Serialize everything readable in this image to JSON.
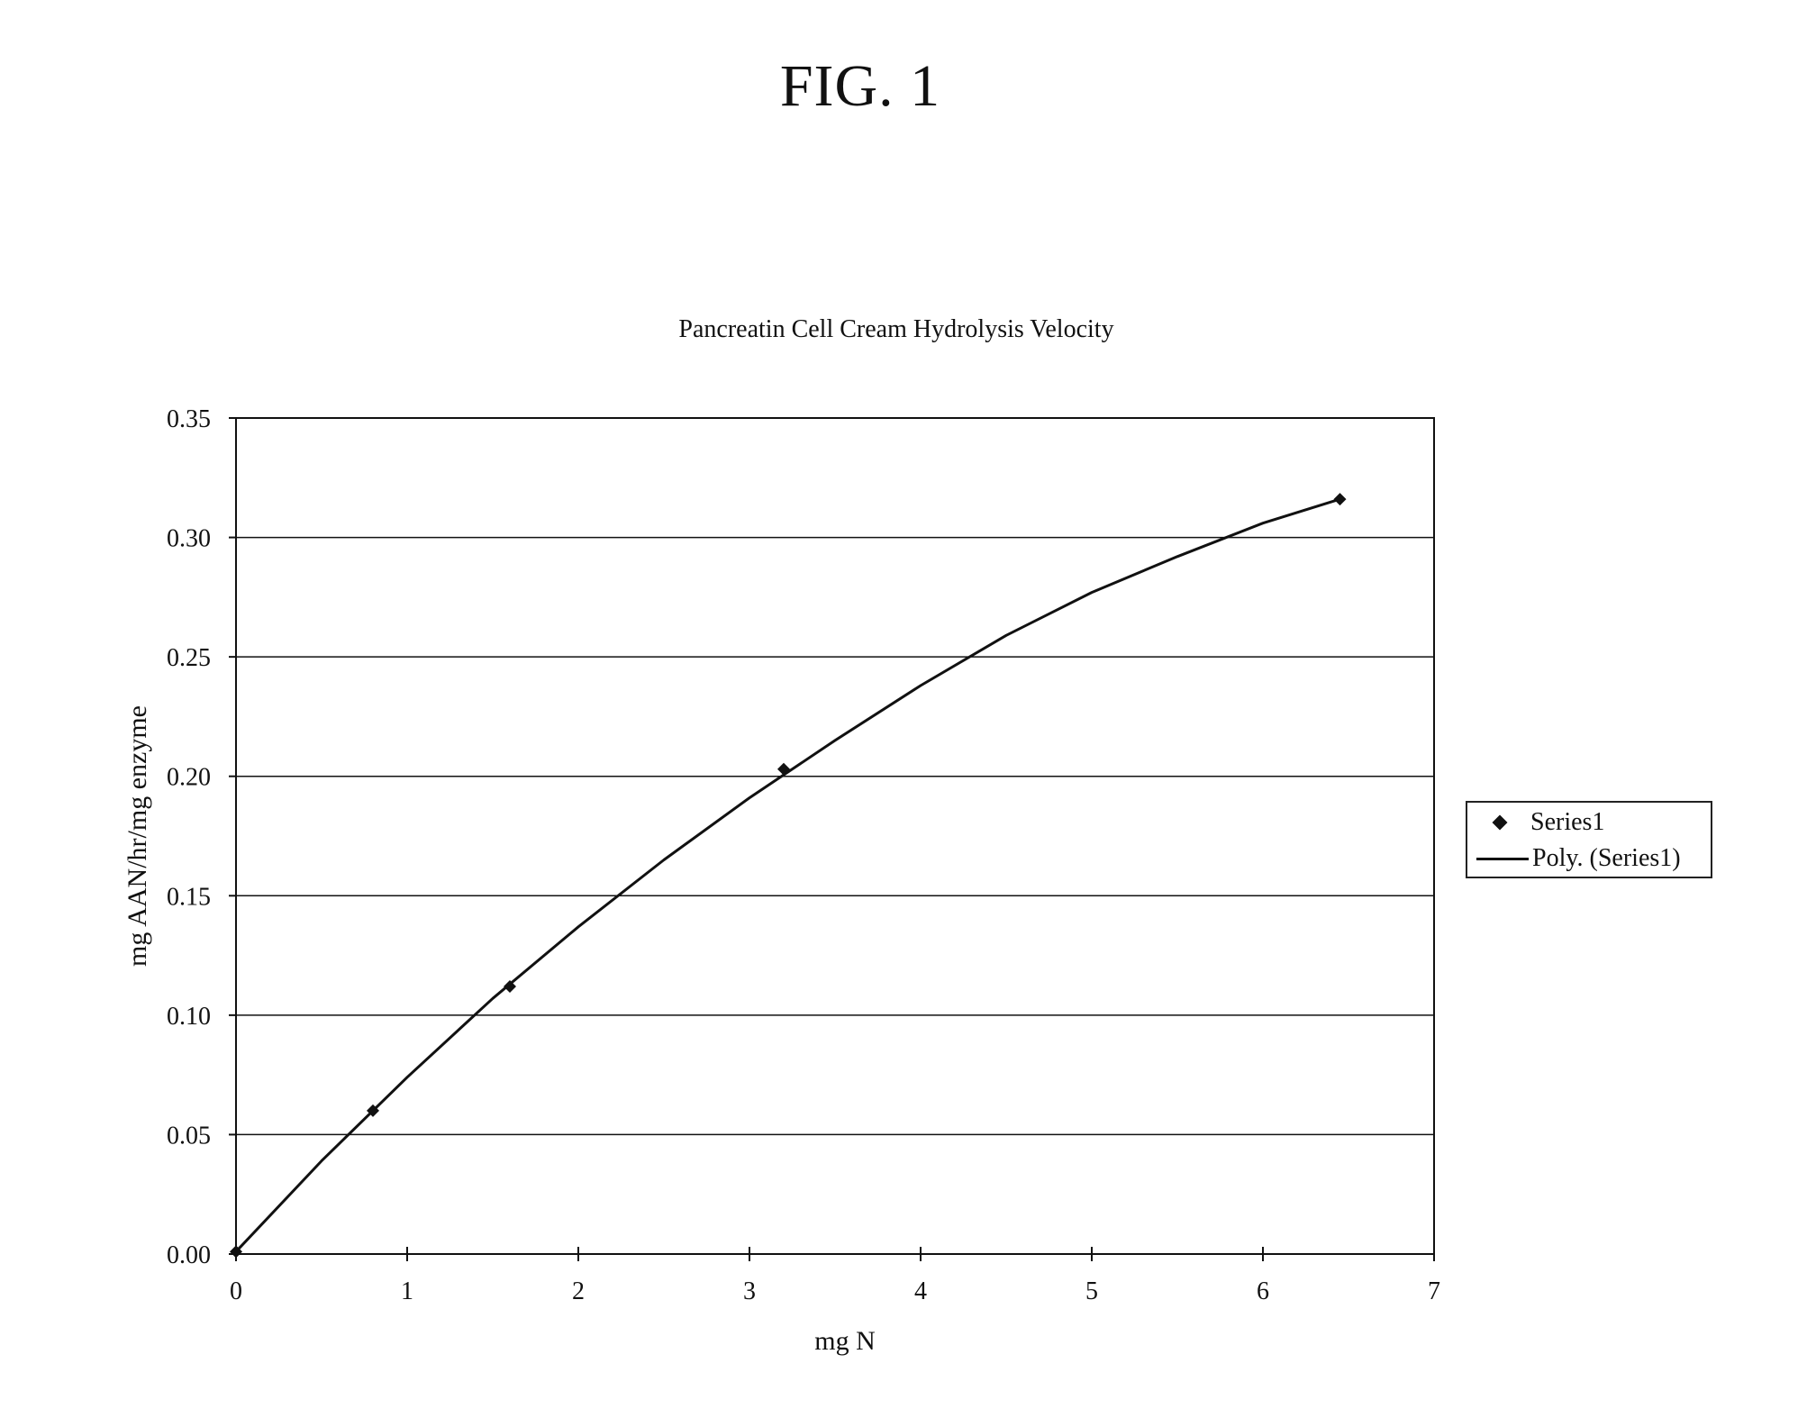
{
  "figure_label": "FIG. 1",
  "chart_data": {
    "type": "scatter",
    "title": "Pancreatin Cell Cream Hydrolysis Velocity",
    "xlabel": "mg N",
    "ylabel": "mg AAN/hr/mg enzyme",
    "xlim": [
      0,
      7
    ],
    "ylim": [
      0,
      0.35
    ],
    "x_ticks": [
      "0",
      "1",
      "2",
      "3",
      "4",
      "5",
      "6",
      "7"
    ],
    "y_ticks": [
      "0.00",
      "0.05",
      "0.10",
      "0.15",
      "0.20",
      "0.25",
      "0.30",
      "0.35"
    ],
    "grid": "horizontal",
    "legend_position": "right",
    "series": [
      {
        "name": "Series1",
        "marker": "diamond",
        "x": [
          0,
          0.8,
          1.6,
          3.2,
          6.45
        ],
        "y": [
          0.001,
          0.06,
          0.112,
          0.203,
          0.316
        ]
      },
      {
        "name": "Poly. (Series1)",
        "style": "line",
        "trendline": "polynomial",
        "x": [
          0,
          0.5,
          1,
          1.5,
          2,
          2.5,
          3,
          3.5,
          4,
          4.5,
          5,
          5.5,
          6,
          6.45
        ],
        "y": [
          0.001,
          0.039,
          0.074,
          0.107,
          0.137,
          0.165,
          0.191,
          0.215,
          0.238,
          0.259,
          0.277,
          0.292,
          0.306,
          0.316
        ]
      }
    ]
  }
}
